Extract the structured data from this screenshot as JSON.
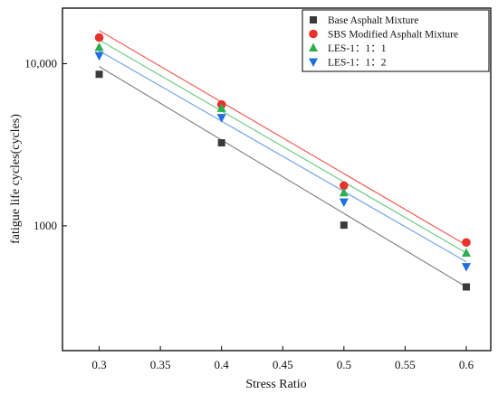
{
  "chart_data": {
    "type": "scatter",
    "xlabel": "Stress Ratio",
    "ylabel": "fatigue life cycles(cycles)",
    "x_scale": "linear",
    "y_scale": "log",
    "xlim": [
      0.27,
      0.62
    ],
    "ylim": [
      170,
      22000
    ],
    "x_ticks": [
      0.3,
      0.35,
      0.4,
      0.45,
      0.5,
      0.55,
      0.6
    ],
    "x_tick_labels": [
      "0.3",
      "0.35",
      "0.4",
      "0.45",
      "0.5",
      "0.55",
      "0.6"
    ],
    "y_ticks": [
      1000,
      10000
    ],
    "y_tick_labels": [
      "1000",
      "10,000"
    ],
    "legend_position": "top-right",
    "grid": false,
    "series": [
      {
        "name": "Base Asphalt Mixture",
        "marker": "square",
        "color": "#3a3a3a",
        "fit_color": "#7a7a7a",
        "x": [
          0.3,
          0.4,
          0.5,
          0.6
        ],
        "y": [
          8600,
          3250,
          1010,
          420
        ],
        "fit": [
          9600,
          420
        ]
      },
      {
        "name": "SBS Modified Asphalt Mixture",
        "marker": "circle",
        "color": "#e8312a",
        "fit_color": "#f0504a",
        "x": [
          0.3,
          0.4,
          0.5,
          0.6
        ],
        "y": [
          14500,
          5600,
          1770,
          790
        ],
        "fit": [
          16000,
          760
        ]
      },
      {
        "name": "LES-1：1：1",
        "marker": "triangle-up",
        "color": "#2cae4e",
        "fit_color": "#64c87a",
        "x": [
          0.3,
          0.4,
          0.5,
          0.6
        ],
        "y": [
          12600,
          5300,
          1600,
          680
        ],
        "fit": [
          14000,
          680
        ]
      },
      {
        "name": "LES-1：1：2",
        "marker": "triangle-down",
        "color": "#1f6fe0",
        "fit_color": "#6a9ee8",
        "x": [
          0.3,
          0.4,
          0.5,
          0.6
        ],
        "y": [
          11200,
          4650,
          1400,
          560
        ],
        "fit": [
          12000,
          600
        ]
      }
    ]
  }
}
